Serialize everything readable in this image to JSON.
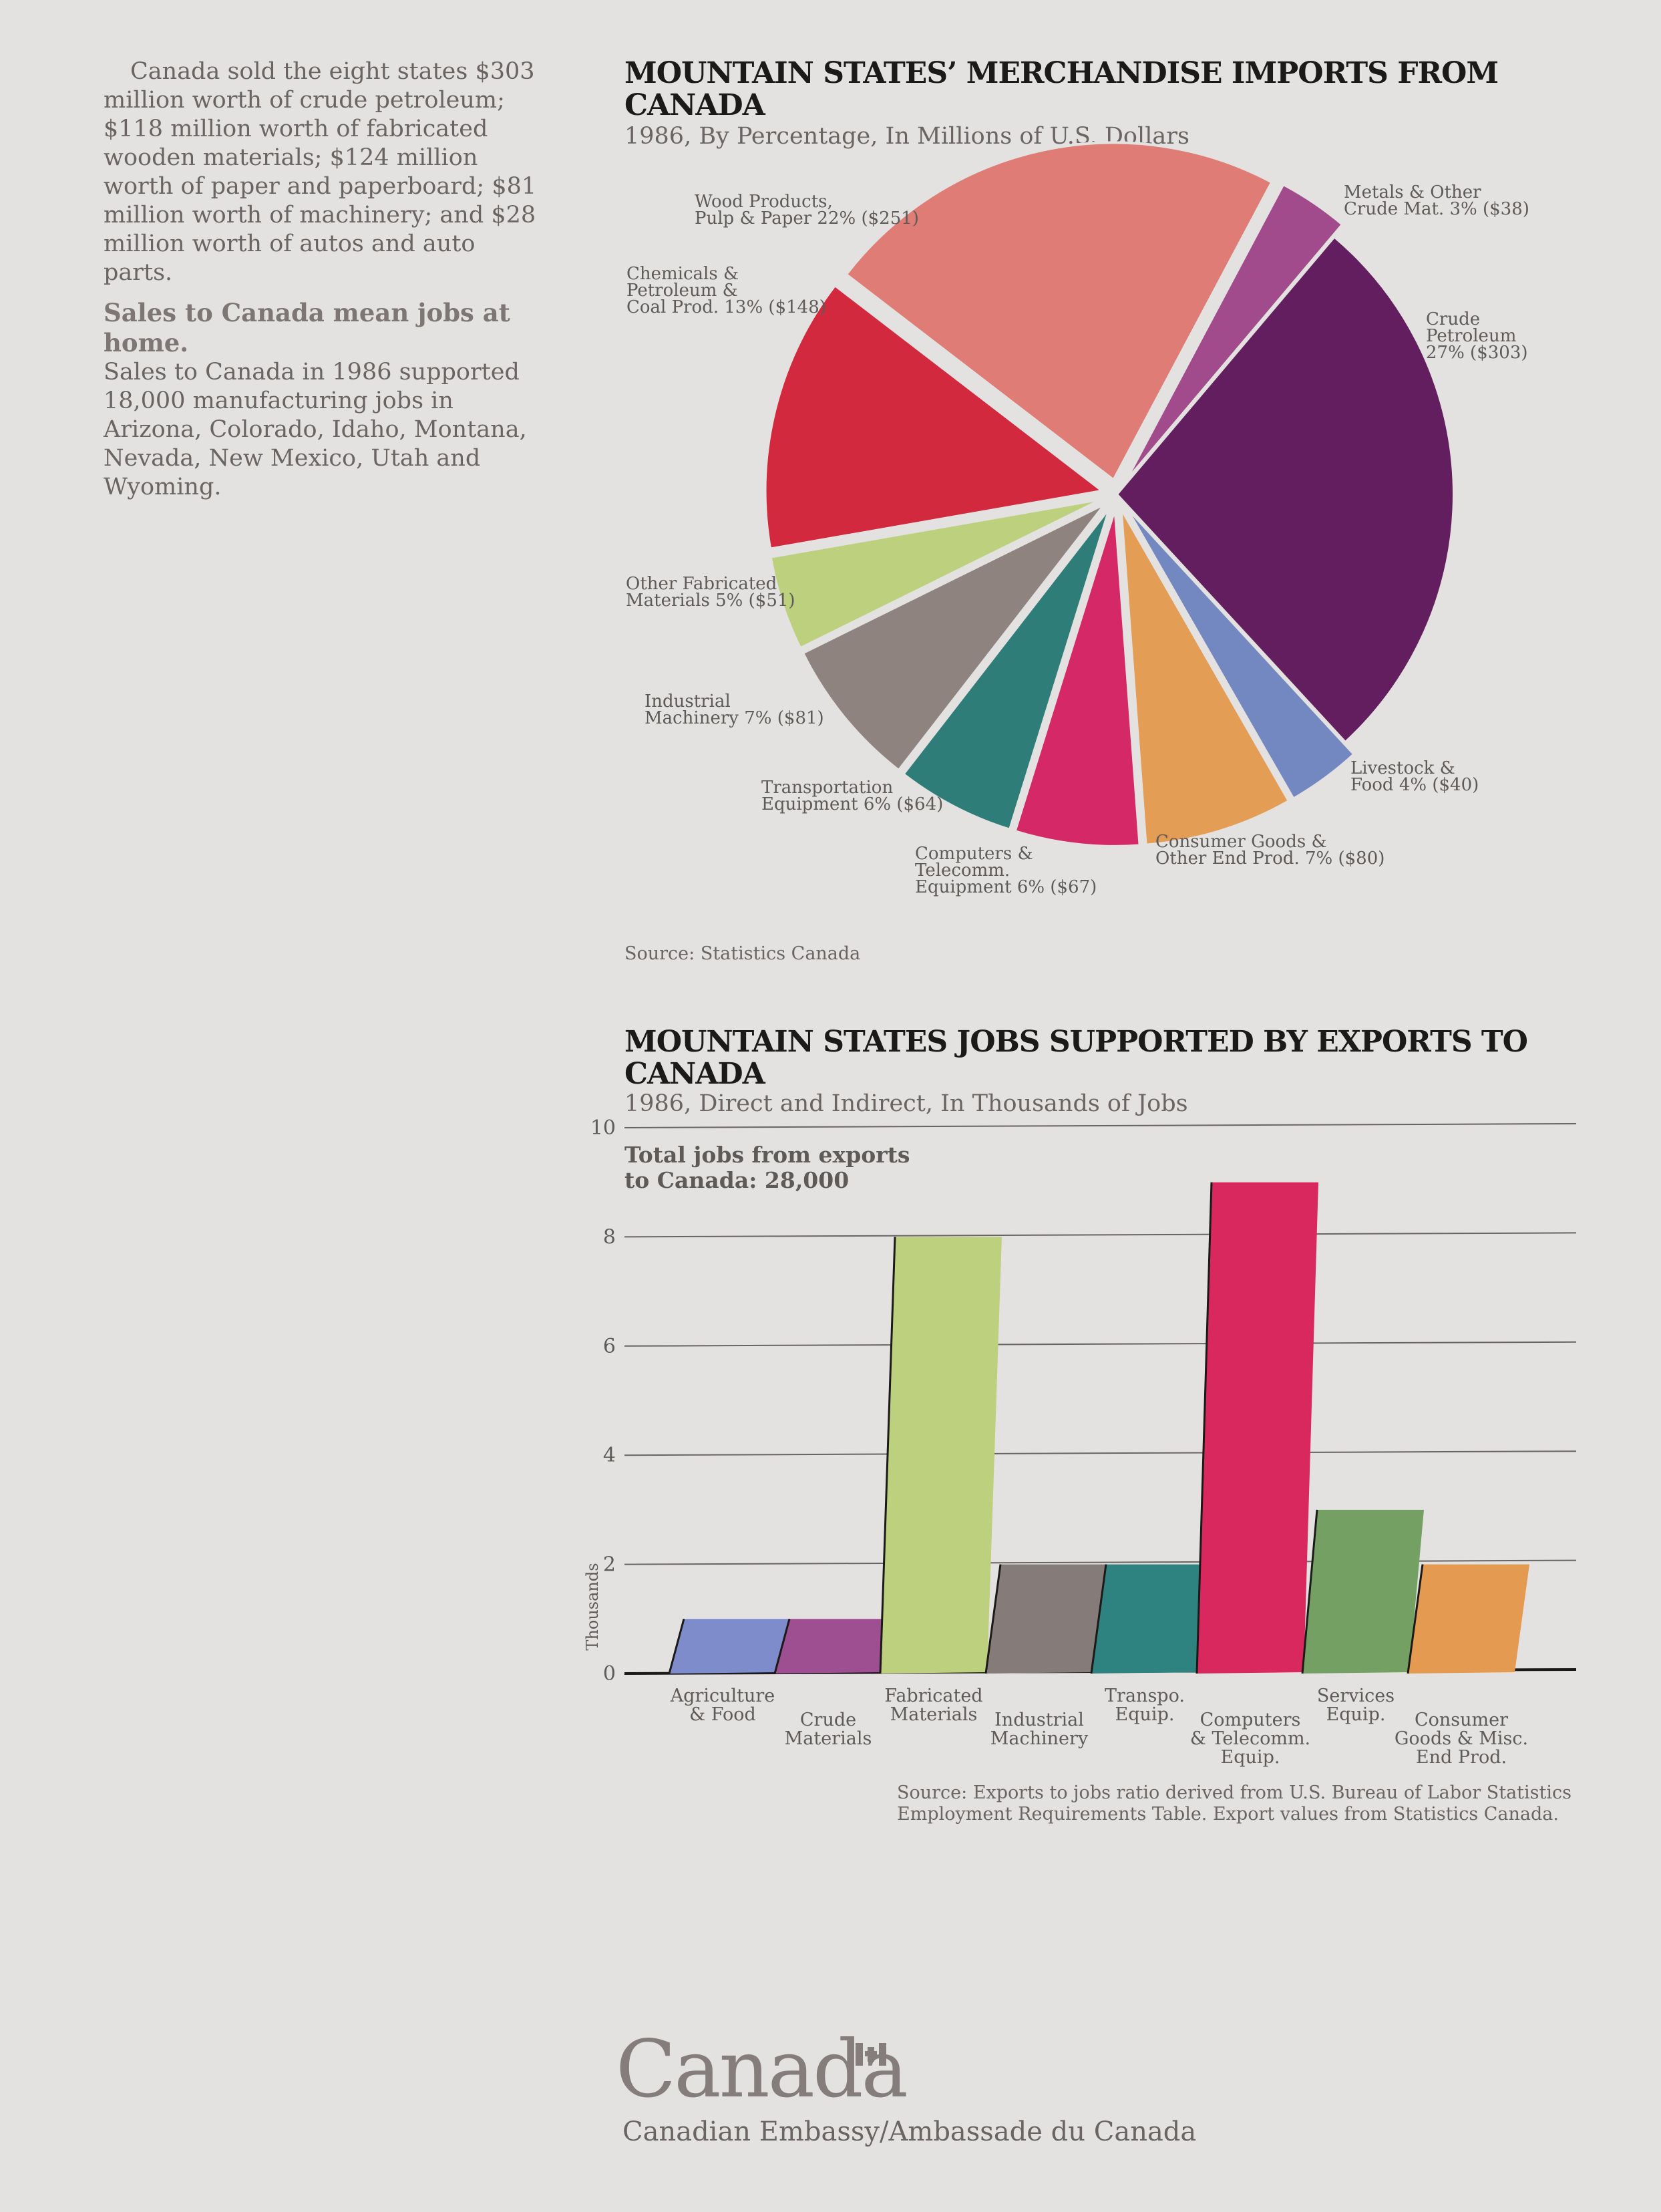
{
  "intro": {
    "paragraph": "Canada sold the eight states $303 million worth of crude petroleum; $118 million worth of fabricated wooden materials; $124 million worth of paper and paperboard; $81 million worth of machinery; and $28 million worth of autos and auto parts.",
    "subheading": "Sales to Canada mean jobs at home.",
    "paragraph2": "Sales to Canada in 1986 supported 18,000 manufacturing jobs in Arizona, Colorado, Idaho, Montana, Nevada, New Mexico, Utah and Wyoming."
  },
  "pie": {
    "title": "MOUNTAIN STATES’ MERCHANDISE IMPORTS FROM CANADA",
    "subtitle": "1986, By Percentage, In Millions of U.S. Dollars",
    "source": "Source: Statistics Canada"
  },
  "bar": {
    "title": "MOUNTAIN STATES JOBS SUPPORTED BY EXPORTS TO CANADA",
    "subtitle": "1986, Direct and Indirect, In Thousands of Jobs",
    "annotation": [
      "Total jobs from exports",
      "to Canada: 28,000"
    ],
    "source": [
      "Source: Exports to jobs ratio derived from U.S. Bureau of Labor Statistics",
      "Employment Requirements Table. Export values from Statistics Canada."
    ]
  },
  "footer": {
    "logo": "Canada",
    "embassy": "Canadian Embassy/Ambassade du Canada"
  },
  "chart_data": [
    {
      "type": "pie",
      "title": "MOUNTAIN STATES’ MERCHANDISE IMPORTS FROM CANADA",
      "subtitle": "1986, By Percentage, In Millions of U.S. Dollars",
      "slices": [
        {
          "label": [
            "Metals & Other",
            "Crude Mat. 3% ($38)"
          ],
          "percent": 3,
          "value": 38,
          "color": "#a24b8c",
          "exploded": true
        },
        {
          "label": [
            "Crude",
            "Petroleum",
            "27% ($303)"
          ],
          "percent": 27,
          "value": 303,
          "color": "#621e5e",
          "exploded": false
        },
        {
          "label": [
            "Livestock &",
            "Food 4% ($40)"
          ],
          "percent": 4,
          "value": 40,
          "color": "#7387c1",
          "exploded": true
        },
        {
          "label": [
            "Consumer Goods &",
            "Other End Prod. 7% ($80)"
          ],
          "percent": 7,
          "value": 80,
          "color": "#e49d55",
          "exploded": true
        },
        {
          "label": [
            "Computers &",
            "Telecomm.",
            "Equipment 6% ($67)"
          ],
          "percent": 6,
          "value": 67,
          "color": "#d52866",
          "exploded": true
        },
        {
          "label": [
            "Transportation",
            "Equipment 6% ($64)"
          ],
          "percent": 6,
          "value": 64,
          "color": "#2e7d78",
          "exploded": true
        },
        {
          "label": [
            "Industrial",
            "Machinery 7% ($81)"
          ],
          "percent": 7,
          "value": 81,
          "color": "#8f8380",
          "exploded": true
        },
        {
          "label": [
            "Other Fabricated",
            "Materials 5% ($51)"
          ],
          "percent": 5,
          "value": 51,
          "color": "#bdd07d",
          "exploded": true
        },
        {
          "label": [
            "Chemicals &",
            "Petroleum &",
            "Coal Prod. 13% ($148)"
          ],
          "percent": 13,
          "value": 148,
          "color": "#d2293f",
          "exploded": true
        },
        {
          "label": [
            "Wood Products,",
            "Pulp & Paper 22% ($251)"
          ],
          "percent": 22,
          "value": 251,
          "color": "#df7c76",
          "exploded": true
        }
      ]
    },
    {
      "type": "bar",
      "title": "MOUNTAIN STATES JOBS SUPPORTED BY EXPORTS TO CANADA",
      "subtitle": "1986, Direct and Indirect, In Thousands of Jobs",
      "ylabel": "Thousands",
      "ylim": [
        0,
        10
      ],
      "yticks": [
        0,
        2,
        4,
        6,
        8,
        10
      ],
      "grid": true,
      "categories": [
        [
          "Agriculture",
          "& Food"
        ],
        [
          "Crude",
          "Materials"
        ],
        [
          "Fabricated",
          "Materials"
        ],
        [
          "Industrial",
          "Machinery"
        ],
        [
          "Transpo.",
          "Equip."
        ],
        [
          "Computers",
          "& Telecomm.",
          "Equip."
        ],
        [
          "Services",
          "Equip."
        ],
        [
          "Consumer",
          "Goods & Misc.",
          "End Prod."
        ]
      ],
      "values": [
        1,
        1,
        8,
        2,
        2,
        9,
        3,
        2
      ],
      "colors": [
        "#7f8ccb",
        "#9e4f92",
        "#bdd07d",
        "#857c7a",
        "#2e8280",
        "#d8285e",
        "#74a064",
        "#e49a50"
      ]
    }
  ]
}
